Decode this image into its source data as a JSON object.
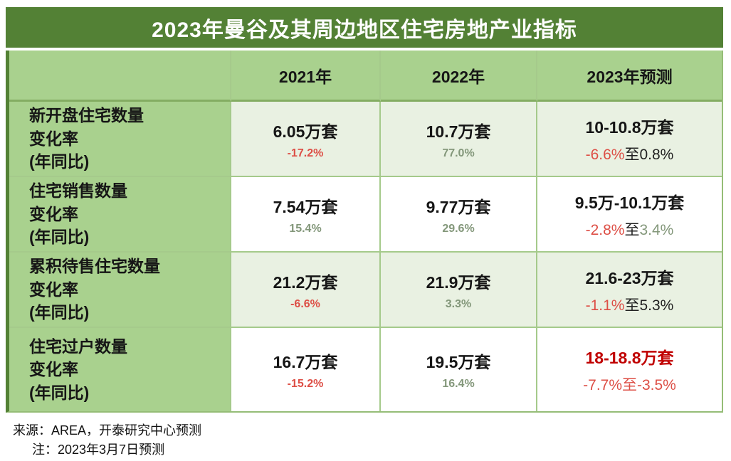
{
  "chart_data": {
    "type": "table",
    "title": "2023年曼谷及其周边地区住宅房地产业指标",
    "columns": [
      "",
      "2021年",
      "2022年",
      "2023年预测"
    ],
    "rows": [
      {
        "label_lines": [
          "新开盘住宅数量",
          "变化率",
          "(年同比)"
        ],
        "cells": [
          {
            "value": "6.05万套",
            "value_style": "black",
            "change_parts": [
              {
                "text": "-17.2%",
                "color": "red"
              }
            ]
          },
          {
            "value": "10.7万套",
            "value_style": "black",
            "change_parts": [
              {
                "text": "77.0%",
                "color": "green"
              }
            ]
          },
          {
            "value": "10-10.8万套",
            "value_style": "black",
            "change_parts": [
              {
                "text": "-6.6%",
                "color": "red"
              },
              {
                "text": "至0.8%",
                "color": "black"
              }
            ]
          }
        ]
      },
      {
        "label_lines": [
          "住宅销售数量",
          "变化率",
          "(年同比)"
        ],
        "cells": [
          {
            "value": "7.54万套",
            "value_style": "black",
            "change_parts": [
              {
                "text": "15.4%",
                "color": "green"
              }
            ]
          },
          {
            "value": "9.77万套",
            "value_style": "black",
            "change_parts": [
              {
                "text": "29.6%",
                "color": "green"
              }
            ]
          },
          {
            "value": "9.5万-10.1万套",
            "value_style": "black",
            "change_parts": [
              {
                "text": "-2.8%",
                "color": "red"
              },
              {
                "text": "至",
                "color": "black"
              },
              {
                "text": "3.4%",
                "color": "green"
              }
            ]
          }
        ]
      },
      {
        "label_lines": [
          "累积待售住宅数量",
          "变化率",
          "(年同比)"
        ],
        "cells": [
          {
            "value": "21.2万套",
            "value_style": "black",
            "change_parts": [
              {
                "text": "-6.6%",
                "color": "red"
              }
            ]
          },
          {
            "value": "21.9万套",
            "value_style": "black",
            "change_parts": [
              {
                "text": "3.3%",
                "color": "green"
              }
            ]
          },
          {
            "value": "21.6-23万套",
            "value_style": "black",
            "change_parts": [
              {
                "text": "-1.1%",
                "color": "red"
              },
              {
                "text": "至5.3%",
                "color": "black"
              }
            ]
          }
        ]
      },
      {
        "label_lines": [
          "住宅过户数量",
          "变化率",
          "(年同比)"
        ],
        "cells": [
          {
            "value": "16.7万套",
            "value_style": "black",
            "change_parts": [
              {
                "text": "-15.2%",
                "color": "red"
              }
            ]
          },
          {
            "value": "19.5万套",
            "value_style": "black",
            "change_parts": [
              {
                "text": "16.4%",
                "color": "green"
              }
            ]
          },
          {
            "value": "18-18.8万套",
            "value_style": "red-bold",
            "change_parts": [
              {
                "text": "-7.7%",
                "color": "red"
              },
              {
                "text": "至",
                "color": "red"
              },
              {
                "text": "-3.5%",
                "color": "red"
              }
            ]
          }
        ]
      }
    ],
    "legend": "none",
    "grid": "on"
  },
  "footer": {
    "source": "来源：AREA，开泰研究中心预测",
    "note": "注：2023年3月7日预测"
  },
  "colors": {
    "title_bg": "#538135",
    "header_bg": "#a9d18e",
    "tint_row_bg": "#e9f1e2",
    "white_row_bg": "#ffffff",
    "gridline": "#a5ca8b",
    "negative_red": "#dd4f46",
    "positive_green": "#83977a",
    "forecast_highlight_red": "#c00000"
  }
}
